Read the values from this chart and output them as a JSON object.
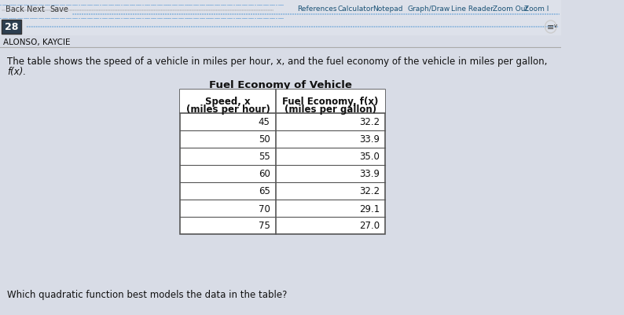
{
  "page_number": "28",
  "student_name": "ALONSO, KAYCIE",
  "description_line1": "The table shows the speed of a vehicle in miles per hour, x, and the fuel economy of the vehicle in miles per gallon,",
  "description_line2": "f(x).",
  "table_title": "Fuel Economy of Vehicle",
  "col1_header_line1": "Speed, x",
  "col1_header_line2": "(miles per hour)",
  "col2_header_line1": "Fuel Economy, f(x)",
  "col2_header_line2": "(miles per gallon)",
  "speed_values": [
    45,
    50,
    55,
    60,
    65,
    70,
    75
  ],
  "fuel_values": [
    "32.2",
    "33.9",
    "35.0",
    "33.9",
    "32.2",
    "29.1",
    "27.0"
  ],
  "bottom_text": "Which quadratic function best models the data in the table?",
  "nav_items": [
    "Back",
    "Next",
    "Save"
  ],
  "ref_items": [
    "References",
    "Calculator",
    "Notepad",
    "Graph/Draw",
    "Line Reader",
    "Zoom Out",
    "Zoom I"
  ],
  "bg_color": "#d8dce6",
  "toolbar_bg": "#e8eaf0",
  "table_bg": "#ffffff",
  "header_bg": "#ffffff",
  "border_color": "#555555",
  "text_color": "#111111",
  "nav_color": "#333333",
  "ref_color": "#1a5276",
  "page_num_bg": "#2c3e50",
  "page_num_color": "#ffffff"
}
